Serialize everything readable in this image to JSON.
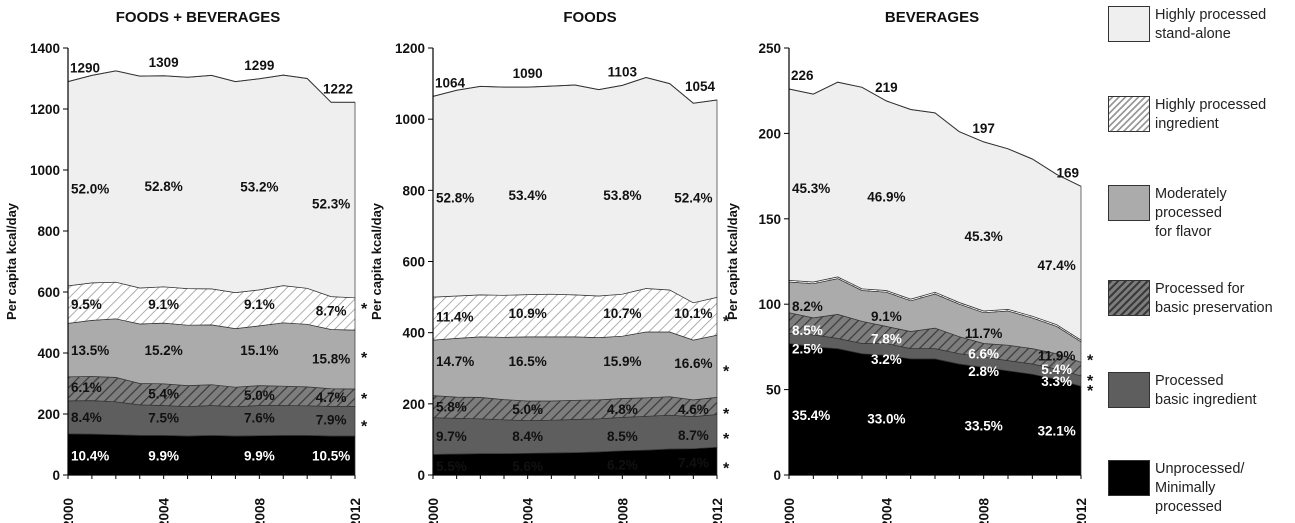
{
  "chart_data": [
    {
      "type": "area",
      "title": "FOODS + BEVERAGES",
      "ylabel": "Per capita kcal/day",
      "ylim": [
        0,
        1400
      ],
      "yticks": [
        0,
        200,
        400,
        600,
        800,
        1000,
        1200,
        1400
      ],
      "x": [
        2000,
        2001,
        2002,
        2003,
        2004,
        2005,
        2006,
        2007,
        2008,
        2009,
        2010,
        2011,
        2012
      ],
      "xticks": [
        "2000",
        "2004",
        "2008",
        "2012"
      ],
      "series": [
        {
          "name": "Unprocessed/ Minimally processed",
          "values": [
            135,
            134,
            132,
            130,
            130,
            128,
            130,
            128,
            129,
            130,
            130,
            128,
            128
          ]
        },
        {
          "name": "Processed basic ingredient",
          "values": [
            108,
            110,
            108,
            100,
            98,
            96,
            98,
            96,
            99,
            98,
            97,
            97,
            97
          ]
        },
        {
          "name": "Processed for basic preservation",
          "values": [
            79,
            79,
            80,
            70,
            71,
            69,
            68,
            64,
            65,
            63,
            62,
            58,
            57
          ]
        },
        {
          "name": "Moderately processed for flavor",
          "values": [
            175,
            184,
            192,
            195,
            199,
            198,
            196,
            192,
            196,
            208,
            205,
            194,
            193
          ]
        },
        {
          "name": "Highly processed ingredient",
          "values": [
            123,
            123,
            120,
            118,
            119,
            120,
            118,
            118,
            118,
            122,
            118,
            108,
            106
          ]
        },
        {
          "name": "Highly processed stand-alone",
          "values": [
            670,
            680,
            693,
            695,
            692,
            693,
            700,
            692,
            692,
            690,
            688,
            637,
            641
          ]
        }
      ],
      "totals": [
        {
          "x": 2000,
          "label": "1290"
        },
        {
          "x": 2004,
          "label": "1309"
        },
        {
          "x": 2008,
          "label": "1299"
        },
        {
          "x": 2012,
          "label": "1222"
        }
      ],
      "annotations": [
        {
          "x": 2000,
          "y": 940,
          "text": "52.0%"
        },
        {
          "x": 2004,
          "y": 948,
          "text": "52.8%"
        },
        {
          "x": 2008,
          "y": 946,
          "text": "53.2%"
        },
        {
          "x": 2011,
          "y": 890,
          "text": "52.3%"
        },
        {
          "x": 2000,
          "y": 560,
          "text": "9.5%"
        },
        {
          "x": 2004,
          "y": 560,
          "text": "9.1%"
        },
        {
          "x": 2008,
          "y": 560,
          "text": "9.1%"
        },
        {
          "x": 2011,
          "y": 540,
          "text": "8.7%"
        },
        {
          "x": 2000,
          "y": 410,
          "text": "13.5%"
        },
        {
          "x": 2004,
          "y": 410,
          "text": "15.2%"
        },
        {
          "x": 2008,
          "y": 410,
          "text": "15.1%"
        },
        {
          "x": 2011,
          "y": 382,
          "text": "15.8%"
        },
        {
          "x": 2000,
          "y": 288,
          "text": "6.1%"
        },
        {
          "x": 2004,
          "y": 268,
          "text": "5.4%"
        },
        {
          "x": 2008,
          "y": 262,
          "text": "5.0%"
        },
        {
          "x": 2011,
          "y": 256,
          "text": "4.7%"
        },
        {
          "x": 2000,
          "y": 190,
          "text": "8.4%"
        },
        {
          "x": 2004,
          "y": 188,
          "text": "7.5%"
        },
        {
          "x": 2008,
          "y": 188,
          "text": "7.6%"
        },
        {
          "x": 2011,
          "y": 182,
          "text": "7.9%"
        },
        {
          "x": 2000,
          "y": 64,
          "text": "10.4%",
          "light": true
        },
        {
          "x": 2004,
          "y": 64,
          "text": "9.9%",
          "light": true
        },
        {
          "x": 2008,
          "y": 64,
          "text": "9.9%",
          "light": true
        },
        {
          "x": 2011,
          "y": 64,
          "text": "10.5%",
          "light": true
        }
      ],
      "stars": [
        560,
        400,
        265,
        175
      ]
    },
    {
      "type": "area",
      "title": "FOODS",
      "ylabel": "Per capita kcal/day",
      "ylim": [
        0,
        1200
      ],
      "yticks": [
        0,
        200,
        400,
        600,
        800,
        1000,
        1200
      ],
      "x": [
        2000,
        2001,
        2002,
        2003,
        2004,
        2005,
        2006,
        2007,
        2008,
        2009,
        2010,
        2011,
        2012
      ],
      "xticks": [
        "2000",
        "2004",
        "2008",
        "2012"
      ],
      "series": [
        {
          "name": "Unprocessed/ Minimally processed",
          "values": [
            58,
            59,
            60,
            60,
            61,
            62,
            63,
            65,
            68,
            70,
            73,
            74,
            78
          ]
        },
        {
          "name": "Processed basic ingredient",
          "values": [
            103,
            100,
            98,
            95,
            92,
            92,
            93,
            93,
            94,
            95,
            95,
            90,
            92
          ]
        },
        {
          "name": "Processed for basic preservation",
          "values": [
            62,
            60,
            60,
            57,
            55,
            54,
            54,
            53,
            53,
            52,
            52,
            47,
            48
          ]
        },
        {
          "name": "Moderately processed for flavor",
          "values": [
            156,
            165,
            170,
            175,
            180,
            180,
            178,
            175,
            175,
            185,
            182,
            168,
            175
          ]
        },
        {
          "name": "Highly processed ingredient",
          "values": [
            121,
            119,
            118,
            118,
            119,
            120,
            118,
            117,
            118,
            122,
            118,
            105,
            106
          ]
        },
        {
          "name": "Highly processed stand-alone",
          "values": [
            564,
            578,
            586,
            585,
            583,
            585,
            590,
            580,
            587,
            593,
            580,
            561,
            555
          ]
        }
      ],
      "totals": [
        {
          "x": 2000,
          "label": "1064"
        },
        {
          "x": 2004,
          "label": "1090"
        },
        {
          "x": 2008,
          "label": "1103"
        },
        {
          "x": 2012,
          "label": "1054"
        }
      ],
      "annotations": [
        {
          "x": 2000,
          "y": 780,
          "text": "52.8%"
        },
        {
          "x": 2004,
          "y": 787,
          "text": "53.4%"
        },
        {
          "x": 2008,
          "y": 787,
          "text": "53.8%"
        },
        {
          "x": 2011,
          "y": 780,
          "text": "52.4%"
        },
        {
          "x": 2000,
          "y": 445,
          "text": "11.4%"
        },
        {
          "x": 2004,
          "y": 455,
          "text": "10.9%"
        },
        {
          "x": 2008,
          "y": 455,
          "text": "10.7%"
        },
        {
          "x": 2011,
          "y": 455,
          "text": "10.1%"
        },
        {
          "x": 2000,
          "y": 320,
          "text": "14.7%"
        },
        {
          "x": 2004,
          "y": 320,
          "text": "16.5%"
        },
        {
          "x": 2008,
          "y": 320,
          "text": "15.9%"
        },
        {
          "x": 2011,
          "y": 315,
          "text": "16.6%"
        },
        {
          "x": 2000,
          "y": 193,
          "text": "5.8%"
        },
        {
          "x": 2004,
          "y": 185,
          "text": "5.0%"
        },
        {
          "x": 2008,
          "y": 185,
          "text": "4.8%"
        },
        {
          "x": 2011,
          "y": 185,
          "text": "4.6%"
        },
        {
          "x": 2000,
          "y": 110,
          "text": "9.7%"
        },
        {
          "x": 2004,
          "y": 110,
          "text": "8.4%"
        },
        {
          "x": 2008,
          "y": 110,
          "text": "8.5%"
        },
        {
          "x": 2011,
          "y": 112,
          "text": "8.7%"
        },
        {
          "x": 2000,
          "y": 25,
          "text": "5.5%"
        },
        {
          "x": 2004,
          "y": 25,
          "text": "5.6%"
        },
        {
          "x": 2008,
          "y": 30,
          "text": "6.2%"
        },
        {
          "x": 2011,
          "y": 35,
          "text": "7.4%"
        }
      ],
      "stars": [
        445,
        305,
        185,
        115,
        32
      ]
    },
    {
      "type": "area",
      "title": "BEVERAGES",
      "ylabel": "Per capita kcal/day",
      "ylim": [
        0,
        250
      ],
      "yticks": [
        0,
        50,
        100,
        150,
        200,
        250
      ],
      "x": [
        2000,
        2001,
        2002,
        2003,
        2004,
        2005,
        2006,
        2007,
        2008,
        2009,
        2010,
        2011,
        2012
      ],
      "xticks": [
        "2000",
        "2004",
        "2008",
        "2012"
      ],
      "series": [
        {
          "name": "Unprocessed/ Minimally processed",
          "values": [
            77,
            75,
            74,
            71,
            70,
            68,
            68,
            65,
            63,
            61,
            59,
            56,
            52
          ]
        },
        {
          "name": "Processed basic ingredient",
          "values": [
            6,
            7,
            6,
            6,
            7,
            6,
            6,
            6,
            6,
            6,
            6,
            6,
            6
          ]
        },
        {
          "name": "Processed for basic preservation",
          "values": [
            12,
            10,
            14,
            13,
            10,
            10,
            12,
            10,
            8,
            9,
            9,
            9,
            8
          ]
        },
        {
          "name": "Moderately processed for flavor",
          "values": [
            18,
            20,
            21,
            18,
            20,
            18,
            20,
            19,
            18,
            20,
            18,
            16,
            12
          ]
        },
        {
          "name": "Highly processed ingredient",
          "values": [
            1,
            1,
            1,
            1,
            1,
            1,
            1,
            1,
            1,
            1,
            1,
            1,
            1
          ]
        },
        {
          "name": "Highly processed stand-alone",
          "values": [
            112,
            110,
            114,
            118,
            111,
            111,
            105,
            100,
            99,
            94,
            92,
            88,
            90
          ]
        }
      ],
      "totals": [
        {
          "x": 2000,
          "label": "226"
        },
        {
          "x": 2004,
          "label": "219"
        },
        {
          "x": 2008,
          "label": "197"
        },
        {
          "x": 2012,
          "label": "169"
        }
      ],
      "annotations": [
        {
          "x": 2000,
          "y": 168,
          "text": "45.3%"
        },
        {
          "x": 2004,
          "y": 163,
          "text": "46.9%"
        },
        {
          "x": 2008,
          "y": 140,
          "text": "45.3%"
        },
        {
          "x": 2011,
          "y": 123,
          "text": "47.4%"
        },
        {
          "x": 2000,
          "y": 99,
          "text": "8.2%"
        },
        {
          "x": 2004,
          "y": 93,
          "text": "9.1%"
        },
        {
          "x": 2008,
          "y": 83,
          "text": "11.7%"
        },
        {
          "x": 2011,
          "y": 70,
          "text": "11.9%"
        },
        {
          "x": 2000,
          "y": 85,
          "text": "8.5%",
          "light": true
        },
        {
          "x": 2004,
          "y": 80,
          "text": "7.8%",
          "light": true
        },
        {
          "x": 2008,
          "y": 71,
          "text": "6.6%",
          "light": true
        },
        {
          "x": 2011,
          "y": 62,
          "text": "5.4%",
          "light": true
        },
        {
          "x": 2000,
          "y": 74,
          "text": "2.5%",
          "light": true
        },
        {
          "x": 2004,
          "y": 68,
          "text": "3.2%",
          "light": true
        },
        {
          "x": 2008,
          "y": 61,
          "text": "2.8%",
          "light": true
        },
        {
          "x": 2011,
          "y": 55,
          "text": "3.3%",
          "light": true
        },
        {
          "x": 2000,
          "y": 35,
          "text": "35.4%",
          "light": true
        },
        {
          "x": 2004,
          "y": 33,
          "text": "33.0%",
          "light": true
        },
        {
          "x": 2008,
          "y": 29,
          "text": "33.5%",
          "light": true
        },
        {
          "x": 2011,
          "y": 26,
          "text": "32.1%",
          "light": true
        }
      ],
      "stars": [
        70,
        58,
        52
      ]
    }
  ],
  "legend": [
    {
      "label": "Highly processed\nstand-alone",
      "fill": "#efefef",
      "pattern": false
    },
    {
      "label": "Highly processed\ningredient",
      "fill": "#ffffff",
      "pattern": "light"
    },
    {
      "label": "Moderately\nprocessed\nfor flavor",
      "fill": "#ababab",
      "pattern": false
    },
    {
      "label": "Processed for\nbasic preservation",
      "fill": "#6f6f6f",
      "pattern": "dark"
    },
    {
      "label": "Processed\nbasic ingredient",
      "fill": "#5e5e5e",
      "pattern": false
    },
    {
      "label": "Unprocessed/\nMinimally\nprocessed",
      "fill": "#000000",
      "pattern": false
    }
  ],
  "significance_marker": "*",
  "colors": {
    "stand_alone": "#efefef",
    "hp_ingredient": "#ffffff",
    "moderate": "#ababab",
    "preservation": "#6f6f6f",
    "basic_ingredient": "#5e5e5e",
    "unprocessed": "#000000"
  }
}
